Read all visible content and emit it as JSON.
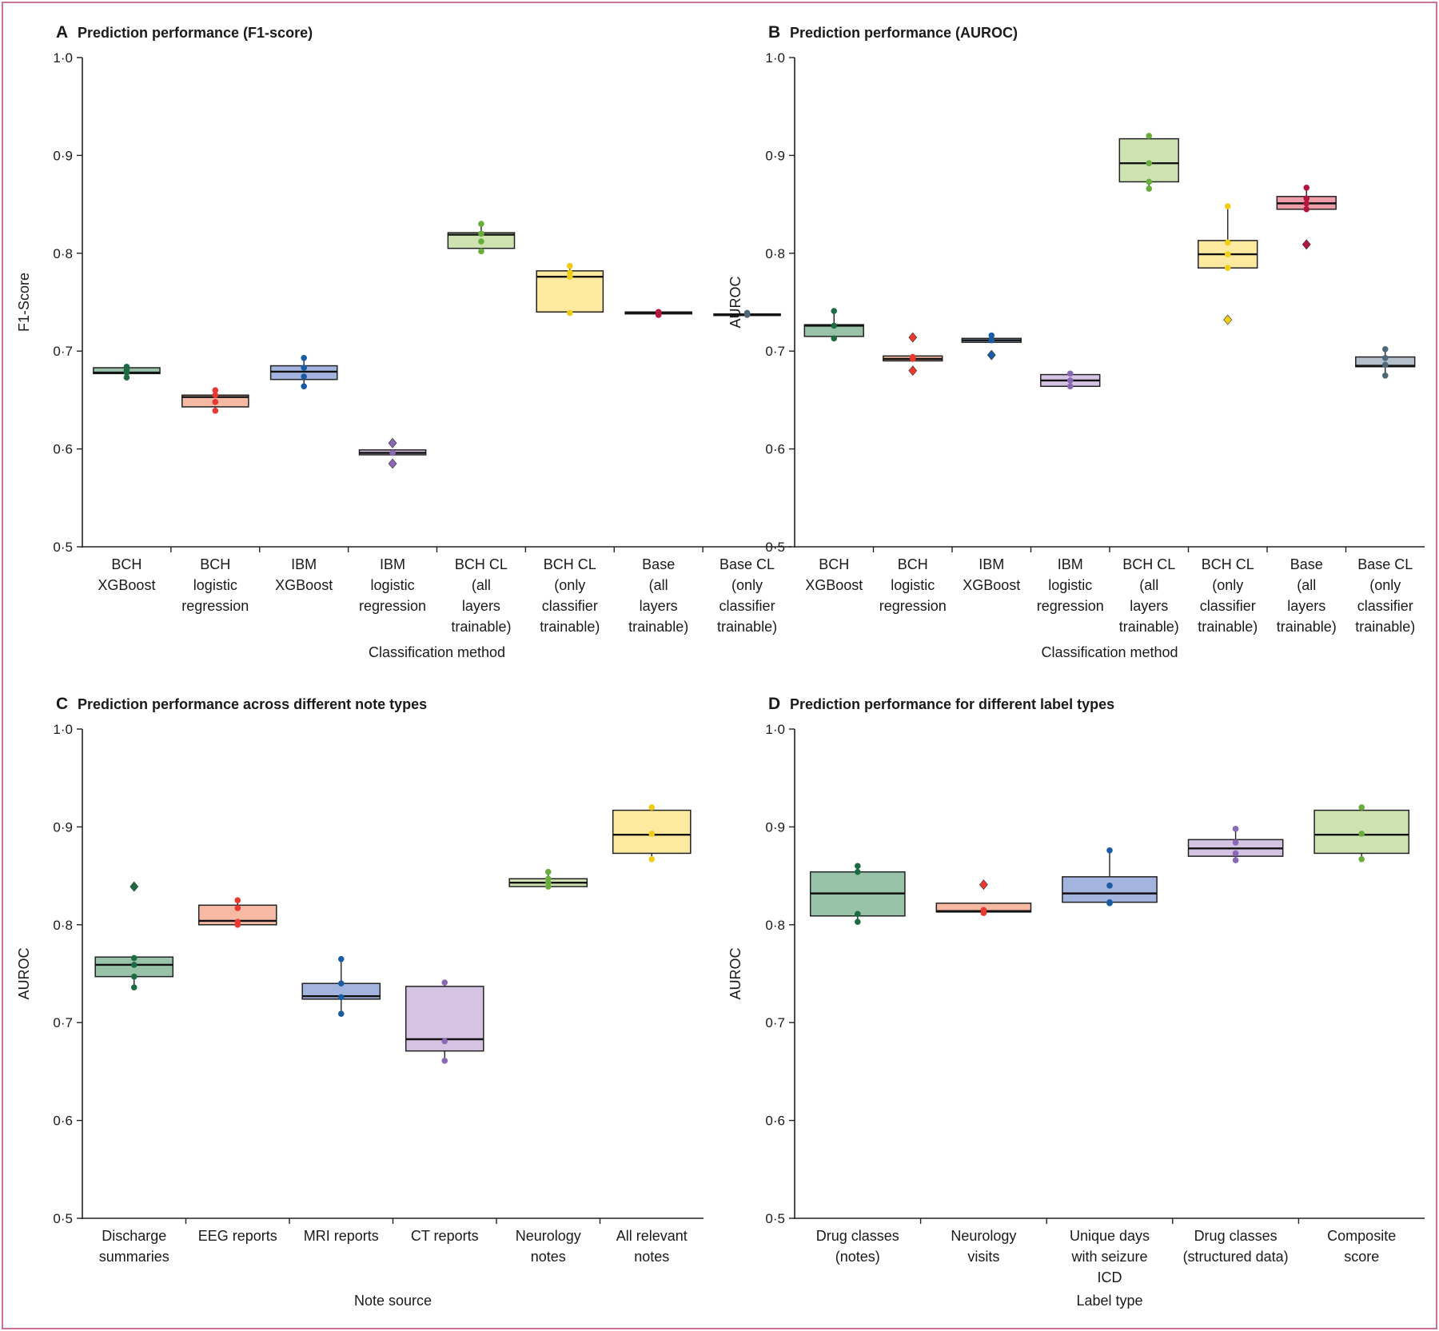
{
  "figure": {
    "border_color": "#c9739b"
  },
  "palette": {
    "green_dark": {
      "fill": "#98c3a8",
      "point": "#1c6b43"
    },
    "salmon": {
      "fill": "#f6b9a3",
      "point": "#e8382f"
    },
    "blue": {
      "fill": "#a3b4df",
      "point": "#1a5ca3"
    },
    "lavender": {
      "fill": "#d4c3e3",
      "point": "#8b68b4"
    },
    "light_green": {
      "fill": "#cfe3b2",
      "point": "#69ad3c"
    },
    "yellow": {
      "fill": "#fdeaa0",
      "point": "#f0cd13"
    },
    "red": {
      "fill": "#ee9ea8",
      "point": "#b5163e"
    },
    "grey": {
      "fill": "#b3bfcb",
      "point": "#4f6878"
    }
  },
  "chart_data": [
    {
      "panel": "A",
      "type": "box",
      "title": "Prediction performance (F1-score)",
      "xlabel": "Classification method",
      "ylabel": "F1-Score",
      "ylim": [
        0.5,
        1.0
      ],
      "yticks": [
        "0·5",
        "0·6",
        "0·7",
        "0·8",
        "0·9",
        "1·0"
      ],
      "groups": [
        {
          "label": [
            "BCH",
            "XGBoost"
          ],
          "color": "green_dark",
          "q1": 0.677,
          "median": 0.678,
          "q3": 0.683,
          "whisker_low": 0.674,
          "whisker_high": 0.685,
          "points": [
            0.673,
            0.678,
            0.681,
            0.684
          ],
          "outliers": []
        },
        {
          "label": [
            "BCH",
            "logistic",
            "regression"
          ],
          "color": "salmon",
          "q1": 0.643,
          "median": 0.653,
          "q3": 0.655,
          "whisker_low": 0.639,
          "whisker_high": 0.66,
          "points": [
            0.639,
            0.648,
            0.655,
            0.66
          ],
          "outliers": []
        },
        {
          "label": [
            "IBM",
            "XGBoost"
          ],
          "color": "blue",
          "q1": 0.671,
          "median": 0.679,
          "q3": 0.685,
          "whisker_low": 0.664,
          "whisker_high": 0.693,
          "points": [
            0.664,
            0.674,
            0.683,
            0.693
          ],
          "outliers": []
        },
        {
          "label": [
            "IBM",
            "logistic",
            "regression"
          ],
          "color": "lavender",
          "q1": 0.594,
          "median": 0.596,
          "q3": 0.599,
          "whisker_low": 0.594,
          "whisker_high": 0.599,
          "points": [
            0.596
          ],
          "outliers": [
            0.606,
            0.585
          ]
        },
        {
          "label": [
            "BCH CL",
            "(all",
            "layers",
            "trainable)"
          ],
          "color": "light_green",
          "q1": 0.805,
          "median": 0.819,
          "q3": 0.821,
          "whisker_low": 0.802,
          "whisker_high": 0.83,
          "points": [
            0.802,
            0.812,
            0.82,
            0.83
          ],
          "outliers": []
        },
        {
          "label": [
            "BCH CL",
            "(only",
            "classifier",
            "trainable)"
          ],
          "color": "yellow",
          "q1": 0.74,
          "median": 0.776,
          "q3": 0.782,
          "whisker_low": 0.739,
          "whisker_high": 0.787,
          "points": [
            0.739,
            0.776,
            0.78,
            0.787
          ],
          "outliers": []
        },
        {
          "label": [
            "Base",
            "(all",
            "layers",
            "trainable)"
          ],
          "color": "red",
          "q1": 0.738,
          "median": 0.739,
          "q3": 0.74,
          "whisker_low": 0.737,
          "whisker_high": 0.741,
          "points": [
            0.737,
            0.738,
            0.739,
            0.74
          ],
          "outliers": []
        },
        {
          "label": [
            "Base CL",
            "(only",
            "classifier",
            "trainable)"
          ],
          "color": "grey",
          "q1": 0.737,
          "median": 0.737,
          "q3": 0.738,
          "whisker_low": 0.736,
          "whisker_high": 0.739,
          "points": [
            0.737,
            0.738,
            0.739
          ],
          "outliers": []
        }
      ]
    },
    {
      "panel": "B",
      "type": "box",
      "title": "Prediction performance (AUROC)",
      "xlabel": "Classification method",
      "ylabel": "AUROC",
      "ylim": [
        0.5,
        1.0
      ],
      "yticks": [
        "0·5",
        "0·6",
        "0·7",
        "0·8",
        "0·9",
        "1·0"
      ],
      "groups": [
        {
          "label": [
            "BCH",
            "XGBoost"
          ],
          "color": "green_dark",
          "q1": 0.715,
          "median": 0.726,
          "q3": 0.727,
          "whisker_low": 0.713,
          "whisker_high": 0.741,
          "points": [
            0.713,
            0.726,
            0.741
          ],
          "outliers": []
        },
        {
          "label": [
            "BCH",
            "logistic",
            "regression"
          ],
          "color": "salmon",
          "q1": 0.69,
          "median": 0.692,
          "q3": 0.695,
          "whisker_low": 0.69,
          "whisker_high": 0.695,
          "points": [
            0.692,
            0.694
          ],
          "outliers": [
            0.714,
            0.68
          ]
        },
        {
          "label": [
            "IBM",
            "XGBoost"
          ],
          "color": "blue",
          "q1": 0.709,
          "median": 0.711,
          "q3": 0.713,
          "whisker_low": 0.709,
          "whisker_high": 0.716,
          "points": [
            0.711,
            0.716
          ],
          "outliers": [
            0.696
          ]
        },
        {
          "label": [
            "IBM",
            "logistic",
            "regression"
          ],
          "color": "lavender",
          "q1": 0.664,
          "median": 0.67,
          "q3": 0.676,
          "whisker_low": 0.664,
          "whisker_high": 0.678,
          "points": [
            0.664,
            0.67,
            0.677
          ],
          "outliers": []
        },
        {
          "label": [
            "BCH CL",
            "(all",
            "layers",
            "trainable)"
          ],
          "color": "light_green",
          "q1": 0.873,
          "median": 0.892,
          "q3": 0.917,
          "whisker_low": 0.866,
          "whisker_high": 0.921,
          "points": [
            0.866,
            0.873,
            0.892,
            0.92
          ],
          "outliers": []
        },
        {
          "label": [
            "BCH CL",
            "(only",
            "classifier",
            "trainable)"
          ],
          "color": "yellow",
          "q1": 0.785,
          "median": 0.799,
          "q3": 0.813,
          "whisker_low": 0.785,
          "whisker_high": 0.848,
          "points": [
            0.785,
            0.799,
            0.811,
            0.848
          ],
          "outliers": [
            0.732
          ]
        },
        {
          "label": [
            "Base",
            "(all",
            "layers",
            "trainable)"
          ],
          "color": "red",
          "q1": 0.845,
          "median": 0.851,
          "q3": 0.858,
          "whisker_low": 0.845,
          "whisker_high": 0.867,
          "points": [
            0.845,
            0.851,
            0.856,
            0.867
          ],
          "outliers": [
            0.809
          ]
        },
        {
          "label": [
            "Base CL",
            "(only",
            "classifier",
            "trainable)"
          ],
          "color": "grey",
          "q1": 0.684,
          "median": 0.685,
          "q3": 0.694,
          "whisker_low": 0.675,
          "whisker_high": 0.702,
          "points": [
            0.675,
            0.686,
            0.693,
            0.702
          ],
          "outliers": []
        }
      ]
    },
    {
      "panel": "C",
      "type": "box",
      "title": "Prediction performance across different note types",
      "xlabel": "Note source",
      "ylabel": "AUROC",
      "ylim": [
        0.5,
        1.0
      ],
      "yticks": [
        "0·5",
        "0·6",
        "0·7",
        "0·8",
        "0·9",
        "1·0"
      ],
      "groups": [
        {
          "label": [
            "Discharge",
            "summaries"
          ],
          "color": "green_dark",
          "q1": 0.747,
          "median": 0.759,
          "q3": 0.767,
          "whisker_low": 0.736,
          "whisker_high": 0.767,
          "points": [
            0.736,
            0.747,
            0.759,
            0.766
          ],
          "outliers": [
            0.839
          ]
        },
        {
          "label": [
            "EEG reports"
          ],
          "color": "salmon",
          "q1": 0.8,
          "median": 0.804,
          "q3": 0.82,
          "whisker_low": 0.8,
          "whisker_high": 0.825,
          "points": [
            0.8,
            0.803,
            0.817,
            0.825
          ],
          "outliers": []
        },
        {
          "label": [
            "MRI reports"
          ],
          "color": "blue",
          "q1": 0.724,
          "median": 0.727,
          "q3": 0.74,
          "whisker_low": 0.709,
          "whisker_high": 0.765,
          "points": [
            0.709,
            0.726,
            0.74,
            0.765
          ],
          "outliers": []
        },
        {
          "label": [
            "CT reports"
          ],
          "color": "lavender",
          "q1": 0.671,
          "median": 0.683,
          "q3": 0.737,
          "whisker_low": 0.661,
          "whisker_high": 0.741,
          "points": [
            0.661,
            0.681,
            0.741
          ],
          "outliers": []
        },
        {
          "label": [
            "Neurology",
            "notes"
          ],
          "color": "light_green",
          "q1": 0.839,
          "median": 0.843,
          "q3": 0.847,
          "whisker_low": 0.839,
          "whisker_high": 0.854,
          "points": [
            0.839,
            0.843,
            0.847,
            0.854
          ],
          "outliers": []
        },
        {
          "label": [
            "All relevant",
            "notes"
          ],
          "color": "yellow",
          "q1": 0.873,
          "median": 0.892,
          "q3": 0.917,
          "whisker_low": 0.867,
          "whisker_high": 0.921,
          "points": [
            0.867,
            0.893,
            0.92
          ],
          "outliers": []
        }
      ]
    },
    {
      "panel": "D",
      "type": "box",
      "title": "Prediction performance for different label types",
      "xlabel": "Label type",
      "ylabel": "AUROC",
      "ylim": [
        0.5,
        1.0
      ],
      "yticks": [
        "0·5",
        "0·6",
        "0·7",
        "0·8",
        "0·9",
        "1·0"
      ],
      "groups": [
        {
          "label": [
            "Drug classes",
            "(notes)"
          ],
          "color": "green_dark",
          "q1": 0.809,
          "median": 0.832,
          "q3": 0.854,
          "whisker_low": 0.803,
          "whisker_high": 0.86,
          "points": [
            0.803,
            0.811,
            0.854,
            0.86
          ],
          "outliers": []
        },
        {
          "label": [
            "Neurology",
            "visits"
          ],
          "color": "salmon",
          "q1": 0.813,
          "median": 0.814,
          "q3": 0.822,
          "whisker_low": 0.813,
          "whisker_high": 0.822,
          "points": [
            0.812,
            0.815
          ],
          "outliers": [
            0.841
          ]
        },
        {
          "label": [
            "Unique days",
            "with seizure",
            "ICD"
          ],
          "color": "blue",
          "q1": 0.823,
          "median": 0.832,
          "q3": 0.849,
          "whisker_low": 0.822,
          "whisker_high": 0.876,
          "points": [
            0.822,
            0.823,
            0.84,
            0.876
          ],
          "outliers": []
        },
        {
          "label": [
            "Drug classes",
            "(structured data)"
          ],
          "color": "lavender",
          "q1": 0.87,
          "median": 0.878,
          "q3": 0.887,
          "whisker_low": 0.866,
          "whisker_high": 0.898,
          "points": [
            0.866,
            0.873,
            0.884,
            0.898
          ],
          "outliers": []
        },
        {
          "label": [
            "Composite",
            "score"
          ],
          "color": "light_green",
          "q1": 0.873,
          "median": 0.892,
          "q3": 0.917,
          "whisker_low": 0.867,
          "whisker_high": 0.92,
          "points": [
            0.867,
            0.893,
            0.92
          ],
          "outliers": []
        }
      ]
    }
  ]
}
